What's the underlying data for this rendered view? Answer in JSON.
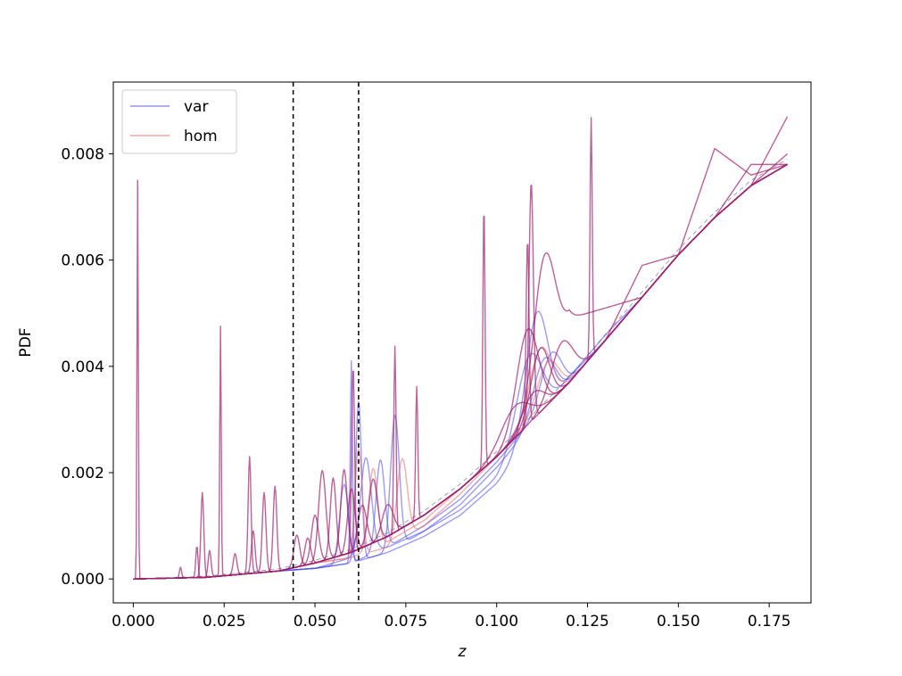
{
  "chart_data": {
    "type": "line",
    "title": "",
    "xlabel": "z",
    "ylabel": "PDF",
    "xlim": [
      -0.0055,
      0.1865
    ],
    "ylim": [
      -0.00045,
      0.00935
    ],
    "xticks": [
      "0.000",
      "0.025",
      "0.050",
      "0.075",
      "0.100",
      "0.125",
      "0.150",
      "0.175"
    ],
    "xtick_values": [
      0,
      0.025,
      0.05,
      0.075,
      0.1,
      0.125,
      0.15,
      0.175
    ],
    "yticks": [
      "0.000",
      "0.002",
      "0.004",
      "0.006",
      "0.008"
    ],
    "ytick_values": [
      0,
      0.002,
      0.004,
      0.006,
      0.008
    ],
    "grid": false,
    "legend_position": "top-left",
    "legend": [
      {
        "label": "var",
        "color": "#4a4af0"
      },
      {
        "label": "hom",
        "color": "#f06a6a"
      }
    ],
    "vlines": [
      0.044,
      0.062
    ],
    "colors": {
      "var": "#4a4af0",
      "hom": "#f06a6a",
      "overlap": "#a0206e",
      "reference": "#888888",
      "vline": "#000000"
    },
    "baseline": {
      "x": [
        0,
        0.02,
        0.04,
        0.05,
        0.06,
        0.07,
        0.08,
        0.09,
        0.1,
        0.11,
        0.12,
        0.13,
        0.14,
        0.15,
        0.16,
        0.17,
        0.18
      ],
      "y": [
        0,
        3e-05,
        0.00015,
        0.0003,
        0.0005,
        0.0008,
        0.0012,
        0.0017,
        0.0023,
        0.003,
        0.0037,
        0.0045,
        0.0053,
        0.0061,
        0.0068,
        0.0074,
        0.0078
      ]
    },
    "reference_offset": 0.0001,
    "series": [
      {
        "group": "var",
        "wobble": [
          0,
          0,
          0,
          -0.0001,
          -0.0002,
          -0.0003,
          -0.0004,
          -0.0005,
          -0.0005,
          -0.0003,
          0.0001,
          0.0001,
          0,
          0,
          0,
          0,
          0
        ],
        "peaks": [
          [
            0.058,
            0.0015,
            0.0012
          ],
          [
            0.111,
            0.0022,
            0.003
          ]
        ]
      },
      {
        "group": "var",
        "wobble": [
          0,
          0,
          0,
          -0.0001,
          -0.0002,
          -0.0003,
          -0.0003,
          -0.0004,
          -0.0004,
          -0.0002,
          0.0001,
          0,
          0,
          0,
          0,
          0,
          0
        ],
        "peaks": [
          [
            0.062,
            0.003,
            0.0008
          ],
          [
            0.072,
            0.0025,
            0.0012
          ],
          [
            0.109,
            0.0015,
            0.0035
          ]
        ]
      },
      {
        "group": "var",
        "wobble": [
          0,
          0,
          0,
          -0.0001,
          -0.0001,
          -0.0002,
          -0.0003,
          -0.0003,
          -0.0002,
          -0.0001,
          0,
          0,
          0,
          0,
          0,
          0,
          0
        ],
        "peaks": [
          [
            0.064,
            0.0018,
            0.0015
          ],
          [
            0.113,
            0.001,
            0.003
          ]
        ]
      },
      {
        "group": "var",
        "wobble": [
          0,
          0,
          0,
          -0.0001,
          -0.0002,
          -0.0002,
          -0.0002,
          -0.0002,
          -0.0001,
          0,
          0,
          0,
          0,
          0,
          0,
          0,
          0
        ],
        "peaks": [
          [
            0.06,
            0.0038,
            0.0003
          ],
          [
            0.068,
            0.0017,
            0.0012
          ],
          [
            0.115,
            0.0009,
            0.0028
          ]
        ]
      },
      {
        "group": "hom",
        "wobble": [
          0,
          0,
          0,
          0,
          -0.0001,
          -0.0002,
          -0.0002,
          -0.0001,
          0,
          0,
          0,
          0,
          0,
          0,
          0,
          0,
          0
        ],
        "peaks": [
          [
            0.062,
            0.002,
            0.001
          ],
          [
            0.074,
            0.0015,
            0.0014
          ],
          [
            0.112,
            0.0012,
            0.003
          ]
        ]
      },
      {
        "group": "hom",
        "wobble": [
          0,
          0,
          0,
          0,
          -0.0001,
          -0.0001,
          -0.0001,
          0,
          0,
          0,
          0,
          0,
          0,
          0,
          0,
          0,
          0
        ],
        "peaks": [
          [
            0.066,
            0.0015,
            0.0012
          ],
          [
            0.114,
            0.0008,
            0.003
          ]
        ]
      },
      {
        "group": "overlap",
        "wobble": [
          0,
          0,
          0,
          0,
          0,
          0,
          0,
          0,
          0,
          0,
          0,
          0,
          0,
          0,
          0.0013,
          0.0002,
          0
        ],
        "peaks": [
          [
            0.0012,
            0.0075,
            0.00018
          ],
          [
            0.024,
            0.0047,
            0.0002
          ],
          [
            0.0605,
            0.0035,
            0.0004
          ],
          [
            0.1095,
            0.0045,
            0.0006
          ],
          [
            0.126,
            0.0045,
            0.0003
          ]
        ]
      },
      {
        "group": "overlap",
        "wobble": [
          0,
          0,
          0,
          0,
          0,
          0,
          0,
          0,
          0,
          0,
          0.0012,
          0.0006,
          0,
          0,
          0,
          0,
          0
        ],
        "peaks": [
          [
            0.019,
            0.0016,
            0.0004
          ],
          [
            0.032,
            0.0022,
            0.0004
          ],
          [
            0.072,
            0.0035,
            0.0003
          ],
          [
            0.0965,
            0.005,
            0.0003
          ],
          [
            0.113,
            0.0025,
            0.003
          ]
        ]
      },
      {
        "group": "overlap",
        "wobble": [
          0,
          0,
          0,
          0,
          0,
          0,
          0,
          0,
          0,
          0,
          0,
          0,
          0,
          0,
          0,
          0,
          0.0009
        ],
        "peaks": [
          [
            0.0175,
            0.0006,
            0.0003
          ],
          [
            0.036,
            0.0015,
            0.0005
          ],
          [
            0.055,
            0.0015,
            0.0008
          ],
          [
            0.078,
            0.0025,
            0.0003
          ],
          [
            0.1085,
            0.0035,
            0.0004
          ]
        ]
      },
      {
        "group": "overlap",
        "wobble": [
          0,
          0,
          0,
          0,
          0,
          0,
          0,
          0,
          0,
          0,
          0,
          0,
          0.0006,
          0,
          0,
          0,
          0
        ],
        "peaks": [
          [
            0.013,
            0.0002,
            0.0003
          ],
          [
            0.039,
            0.0016,
            0.0005
          ],
          [
            0.06,
            0.0012,
            0.001
          ],
          [
            0.1085,
            0.0018,
            0.003
          ]
        ]
      },
      {
        "group": "overlap",
        "wobble": [
          0,
          0,
          0,
          0,
          0,
          0,
          0,
          0,
          0,
          0,
          0,
          0,
          0,
          0,
          0,
          0,
          0
        ],
        "peaks": [
          [
            0.021,
            0.0005,
            0.0004
          ],
          [
            0.033,
            0.0008,
            0.0005
          ],
          [
            0.052,
            0.0017,
            0.001
          ],
          [
            0.066,
            0.0012,
            0.0012
          ],
          [
            0.112,
            0.0012,
            0.0025
          ]
        ]
      },
      {
        "group": "overlap",
        "wobble": [
          0,
          0,
          0,
          0,
          0,
          0,
          0,
          0,
          0,
          0,
          0,
          0,
          0,
          0,
          0,
          0.0004,
          0
        ],
        "peaks": [
          [
            0.028,
            0.0004,
            0.0005
          ],
          [
            0.045,
            0.0006,
            0.0008
          ],
          [
            0.058,
            0.0016,
            0.0009
          ],
          [
            0.118,
            0.0009,
            0.003
          ]
        ]
      },
      {
        "group": "overlap",
        "wobble": [
          0,
          0,
          0,
          0,
          0,
          0,
          0,
          0,
          0,
          0,
          0,
          0,
          0,
          0,
          0,
          0,
          0.0002
        ],
        "peaks": [
          [
            0.048,
            0.0005,
            0.0008
          ],
          [
            0.063,
            0.0008,
            0.0012
          ],
          [
            0.105,
            0.0006,
            0.004
          ]
        ]
      },
      {
        "group": "overlap",
        "wobble": [
          0,
          0,
          0,
          0,
          0,
          0,
          0,
          0,
          0,
          0,
          0,
          0,
          0,
          0,
          0,
          0,
          0
        ],
        "peaks": [
          [
            0.05,
            0.0009,
            0.001
          ],
          [
            0.07,
            0.0006,
            0.0015
          ],
          [
            0.11,
            0.0005,
            0.003
          ]
        ]
      }
    ]
  }
}
